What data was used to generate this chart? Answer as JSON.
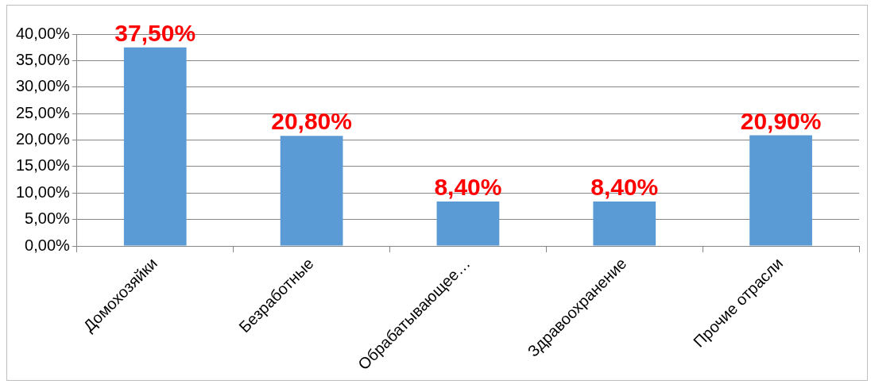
{
  "chart_data": {
    "type": "bar",
    "categories": [
      "Домохозяйки",
      "Безработные",
      "Обрабатывающее…",
      "Здравоохранение",
      "Прочие отрасли"
    ],
    "values": [
      37.5,
      20.8,
      8.4,
      8.4,
      20.9
    ],
    "value_labels": [
      "37,50%",
      "20,80%",
      "8,40%",
      "8,40%",
      "20,90%"
    ],
    "color": "#5b9bd5",
    "ylim": [
      0,
      40
    ],
    "yticks": [
      {
        "value": 0,
        "label": "0,00%"
      },
      {
        "value": 5,
        "label": "5,00%"
      },
      {
        "value": 10,
        "label": "10,00%"
      },
      {
        "value": 15,
        "label": "15,00%"
      },
      {
        "value": 20,
        "label": "20,00%"
      },
      {
        "value": 25,
        "label": "25,00%"
      },
      {
        "value": 30,
        "label": "30,00%"
      },
      {
        "value": 35,
        "label": "35,00%"
      },
      {
        "value": 40,
        "label": "40,00%"
      }
    ],
    "grid": "y",
    "legend": false
  }
}
